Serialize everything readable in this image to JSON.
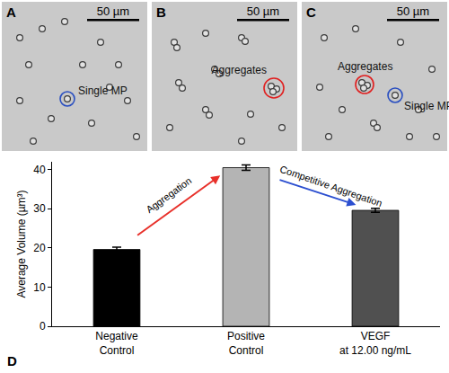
{
  "panels": [
    {
      "label": "A",
      "scale_bar": "50 µm",
      "annotations": [
        {
          "text": "Single MP",
          "color": "#2a4fc0"
        }
      ]
    },
    {
      "label": "B",
      "scale_bar": "50 µm",
      "annotations": [
        {
          "text": "Aggregates",
          "color": "#e02020"
        }
      ]
    },
    {
      "label": "C",
      "scale_bar": "50 µm",
      "annotations": [
        {
          "text": "Aggregates",
          "color": "#e02020"
        },
        {
          "text": "Single MP",
          "color": "#2a4fc0"
        }
      ]
    }
  ],
  "chart_data": {
    "type": "bar",
    "panel_label": "D",
    "categories": [
      "Negative Control",
      "Positive Control",
      "VEGF at 12.00 ng/mL"
    ],
    "values": [
      19.6,
      40.5,
      29.6
    ],
    "errors": [
      0.6,
      0.7,
      0.5
    ],
    "colors": [
      "#000000",
      "#b4b4b4",
      "#505050"
    ],
    "y_label": "Average Volume (µm³)",
    "ylim": [
      0,
      42
    ],
    "yticks": [
      0,
      10,
      20,
      30,
      40
    ],
    "annotations": [
      {
        "text": "Aggregation",
        "color": "#e8302a"
      },
      {
        "text": "Competitive Aggregation",
        "color": "#2c4fd0"
      }
    ]
  }
}
